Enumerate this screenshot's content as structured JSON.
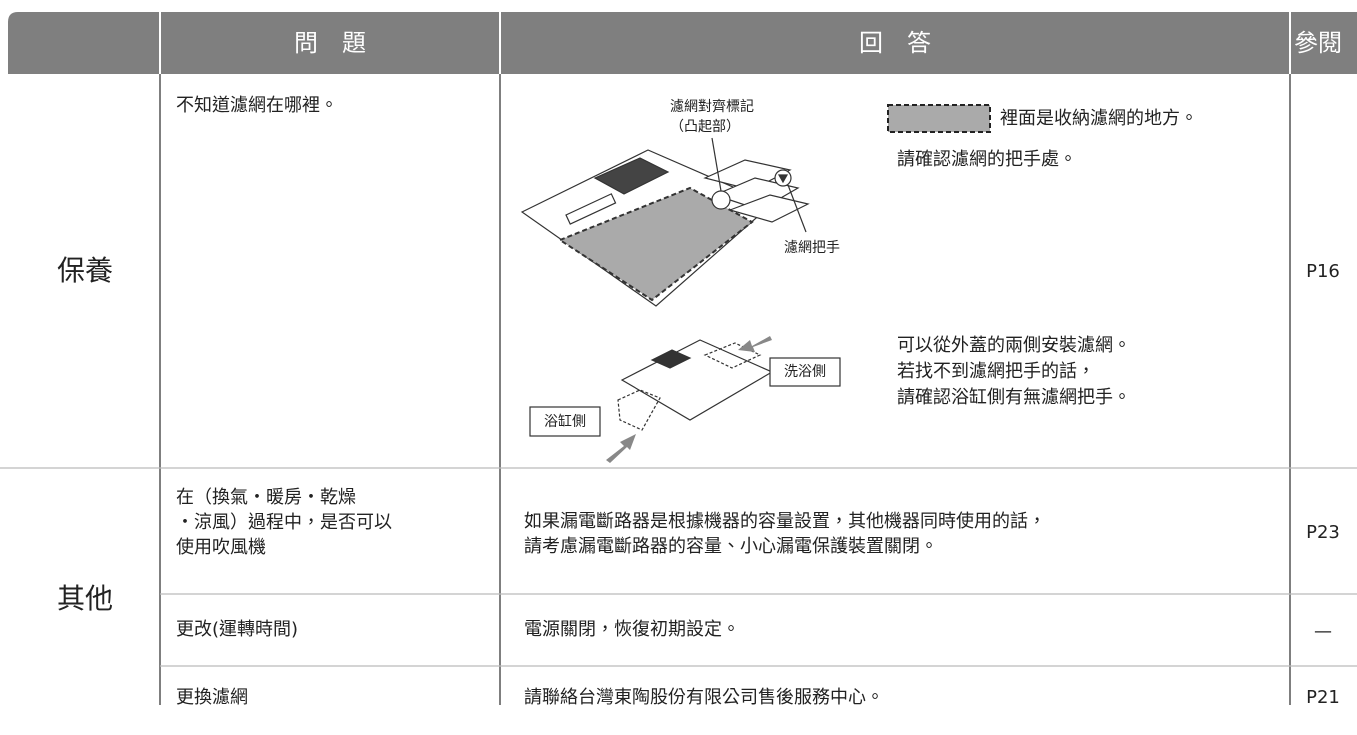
{
  "header": {
    "question": "問　題",
    "answer": "回　答",
    "reference": "參閱"
  },
  "sections": [
    {
      "category": "保養",
      "rows": [
        {
          "question": "不知道濾網在哪裡。",
          "answer": {
            "diagram_labels": {
              "alignment_mark": "濾網對齊標記",
              "alignment_mark_note": "（凸起部）",
              "filter_handle": "濾網把手",
              "wash_side": "洗浴側",
              "bathtub_side": "浴缸側"
            },
            "legend_text": "裡面是收納濾網的地方。",
            "check_text": "請確認濾網的把手處。",
            "install_lines": [
              "可以從外蓋的兩側安裝濾網。",
              "若找不到濾網把手的話，",
              "請確認浴缸側有無濾網把手。"
            ]
          },
          "reference": "P16"
        }
      ]
    },
    {
      "category": "其他",
      "rows": [
        {
          "question": [
            "在（換氣・暖房・乾燥",
            "・涼風）過程中，是否可以",
            "使用吹風機"
          ],
          "answer": [
            "如果漏電斷路器是根據機器的容量設置，其他機器同時使用的話，",
            "請考慮漏電斷路器的容量、小心漏電保護裝置關閉。"
          ],
          "reference": "P23"
        },
        {
          "question": "更改(運轉時間)",
          "answer": "電源關閉，恢復初期設定。",
          "reference": "—"
        },
        {
          "question": "更換濾網",
          "answer": "請聯絡台灣東陶股份有限公司售後服務中心。",
          "reference": "P21"
        }
      ]
    }
  ]
}
